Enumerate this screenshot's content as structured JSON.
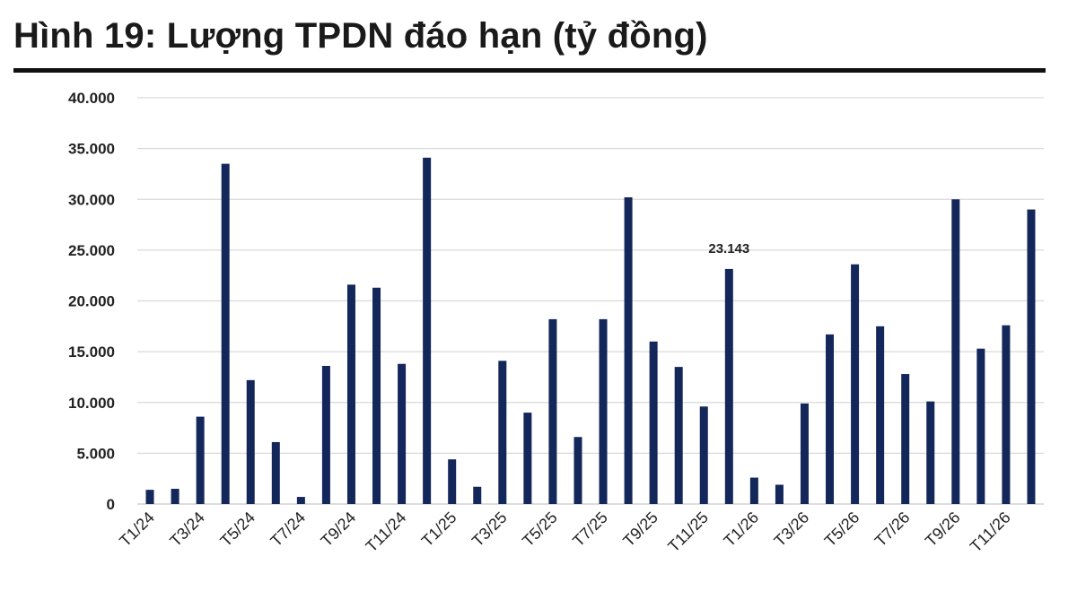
{
  "title": "Hình 19: Lượng TPDN đáo hạn (tỷ đồng)",
  "colors": {
    "bar": "#14275a",
    "grid": "#d9d9d9",
    "rule": "#111111"
  },
  "chart_data": {
    "type": "bar",
    "title": "Hình 19: Lượng TPDN đáo hạn (tỷ đồng)",
    "xlabel": "",
    "ylabel": "",
    "ylim": [
      0,
      40000
    ],
    "grid": true,
    "legend": "none",
    "y_ticks": [
      {
        "value": 0,
        "label": "0"
      },
      {
        "value": 5000,
        "label": "5.000"
      },
      {
        "value": 10000,
        "label": "10.000"
      },
      {
        "value": 15000,
        "label": "15.000"
      },
      {
        "value": 20000,
        "label": "20.000"
      },
      {
        "value": 25000,
        "label": "25.000"
      },
      {
        "value": 30000,
        "label": "30.000"
      },
      {
        "value": 35000,
        "label": "35.000"
      },
      {
        "value": 40000,
        "label": "40.000"
      }
    ],
    "categories": [
      "T1/24",
      "T2/24",
      "T3/24",
      "T4/24",
      "T5/24",
      "T6/24",
      "T7/24",
      "T8/24",
      "T9/24",
      "T10/24",
      "T11/24",
      "T12/24",
      "T1/25",
      "T2/25",
      "T3/25",
      "T4/25",
      "T5/25",
      "T6/25",
      "T7/25",
      "T8/25",
      "T9/25",
      "T10/25",
      "T11/25",
      "T12/25",
      "T1/26",
      "T2/26",
      "T3/26",
      "T4/26",
      "T5/26",
      "T6/26",
      "T7/26",
      "T8/26",
      "T9/26",
      "T10/26",
      "T11/26",
      "T12/26"
    ],
    "x_tick_labels": [
      "T1/24",
      "",
      "T3/24",
      "",
      "T5/24",
      "",
      "T7/24",
      "",
      "T9/24",
      "",
      "T11/24",
      "",
      "T1/25",
      "",
      "T3/25",
      "",
      "T5/25",
      "",
      "T7/25",
      "",
      "T9/25",
      "",
      "T11/25",
      "",
      "T1/26",
      "",
      "T3/26",
      "",
      "T5/26",
      "",
      "T7/26",
      "",
      "T9/26",
      "",
      "T11/26",
      ""
    ],
    "values": [
      1400,
      1500,
      8600,
      33500,
      12200,
      6100,
      700,
      13600,
      21600,
      21300,
      13800,
      34100,
      4400,
      1700,
      14100,
      9000,
      18200,
      6600,
      18200,
      30200,
      16000,
      13500,
      9600,
      23143,
      2600,
      1900,
      9900,
      16700,
      23600,
      17500,
      12800,
      10100,
      30000,
      15300,
      17600,
      29000
    ],
    "data_labels": [
      {
        "index": 23,
        "text": "23.143"
      }
    ]
  }
}
